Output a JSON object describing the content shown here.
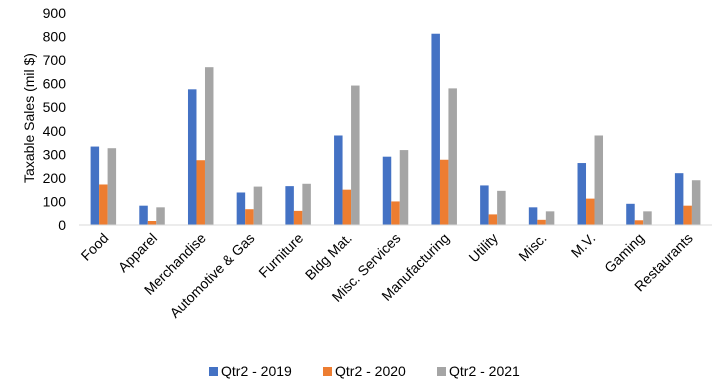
{
  "chart_data": {
    "type": "bar",
    "title": "",
    "xlabel": "",
    "ylabel": "Taxable Sales (mil $)",
    "ylim": [
      0,
      900
    ],
    "yticks": [
      0,
      100,
      200,
      300,
      400,
      500,
      600,
      700,
      800,
      900
    ],
    "grid": false,
    "legend_position": "bottom",
    "categories": [
      "Food",
      "Apparel",
      "Merchandise",
      "Automotive & Gas",
      "Furniture",
      "Bldg Mat.",
      "Misc. Services",
      "Manufacturing",
      "Utility",
      "Misc.",
      "M.V.",
      "Gaming",
      "Restaurants"
    ],
    "series": [
      {
        "name": "Qtr2 - 2019",
        "color": "#4472C4",
        "values": [
          333,
          82,
          576,
          138,
          165,
          380,
          290,
          812,
          168,
          75,
          263,
          90,
          220
        ]
      },
      {
        "name": "Qtr2 - 2020",
        "color": "#ED7D31",
        "values": [
          172,
          17,
          275,
          67,
          60,
          150,
          100,
          277,
          45,
          22,
          112,
          20,
          82
        ]
      },
      {
        "name": "Qtr2 - 2021",
        "color": "#A5A5A5",
        "values": [
          326,
          75,
          670,
          163,
          175,
          592,
          318,
          580,
          145,
          58,
          380,
          58,
          190
        ]
      }
    ]
  }
}
